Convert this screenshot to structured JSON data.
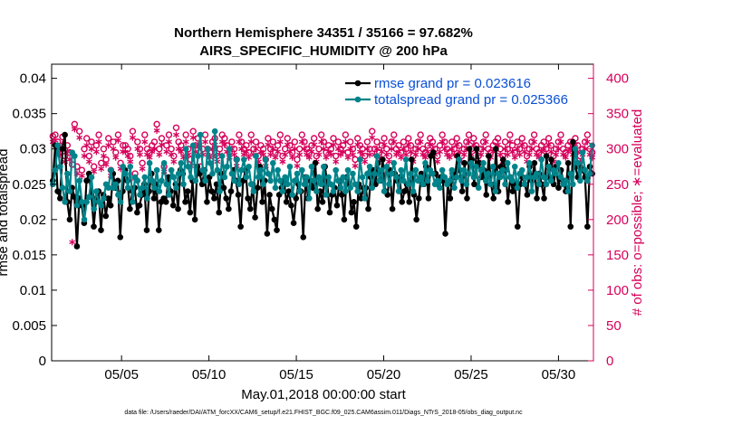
{
  "chart_data": {
    "type": "line",
    "title": "Northern Hemisphere 34351 / 35166 = 97.682%",
    "subtitle": "AIRS_SPECIFIC_HUMIDITY @ 200 hPa",
    "xlabel": "May.01,2018 00:00:00 start",
    "ylabel": "rmse and totalspread",
    "ylabel_right": "# of obs: o=possible; ∗=evaluated",
    "footnote": "data file: /Users/raeder/DAI/ATM_forcXX/CAM6_setup/f.e21.FHIST_BGC.f09_025.CAM6assim.011/Diags_NTrS_2018-05/obs_diag_output.nc",
    "xlim": [
      1,
      32
    ],
    "ylim": [
      0,
      0.042
    ],
    "ylim_right": [
      0,
      420
    ],
    "x_ticks": [
      5,
      10,
      15,
      20,
      25,
      30
    ],
    "x_tick_labels": [
      "05/05",
      "05/10",
      "05/15",
      "05/20",
      "05/25",
      "05/30"
    ],
    "y_ticks": [
      0,
      0.005,
      0.01,
      0.015,
      0.02,
      0.025,
      0.03,
      0.035,
      0.04
    ],
    "y_tick_labels": [
      "0",
      "0.005",
      "0.01",
      "0.015",
      "0.02",
      "0.025",
      "0.03",
      "0.035",
      "0.04"
    ],
    "y_ticks_right": [
      0,
      50,
      100,
      150,
      200,
      250,
      300,
      350,
      400
    ],
    "y_tick_labels_right": [
      "0",
      "50",
      "100",
      "150",
      "200",
      "250",
      "300",
      "350",
      "400"
    ],
    "legend_position": "top-right",
    "series": [
      {
        "name": "rmse grand pr = 0.023616",
        "color": "#000000",
        "marker": "filled-circle",
        "values": [
          0.0255,
          0.0305,
          0.024,
          0.023,
          0.03,
          0.032,
          0.0225,
          0.02,
          0.0245,
          0.0232,
          0.0162,
          0.023,
          0.022,
          0.0195,
          0.0255,
          0.0265,
          0.0235,
          0.019,
          0.023,
          0.024,
          0.0185,
          0.0235,
          0.0205,
          0.023,
          0.022,
          0.0265,
          0.0245,
          0.0255,
          0.0175,
          0.024,
          0.027,
          0.0255,
          0.0215,
          0.024,
          0.0245,
          0.021,
          0.022,
          0.0235,
          0.025,
          0.0185,
          0.024,
          0.0265,
          0.023,
          0.025,
          0.0185,
          0.0225,
          0.023,
          0.0225,
          0.026,
          0.024,
          0.022,
          0.025,
          0.0215,
          0.027,
          0.0265,
          0.0225,
          0.024,
          0.021,
          0.0255,
          0.02,
          0.0275,
          0.0265,
          0.025,
          0.027,
          0.0225,
          0.026,
          0.024,
          0.023,
          0.025,
          0.021,
          0.0265,
          0.0245,
          0.023,
          0.0215,
          0.024,
          0.027,
          0.0255,
          0.0235,
          0.019,
          0.0255,
          0.027,
          0.023,
          0.0215,
          0.025,
          0.0203,
          0.0245,
          0.0275,
          0.0225,
          0.0255,
          0.018,
          0.0235,
          0.0215,
          0.02,
          0.0185,
          0.0235,
          0.0245,
          0.0255,
          0.0225,
          0.024,
          0.022,
          0.0195,
          0.023,
          0.025,
          0.024,
          0.0175,
          0.026,
          0.023,
          0.0255,
          0.0245,
          0.028,
          0.0215,
          0.024,
          0.0225,
          0.0275,
          0.025,
          0.021,
          0.0235,
          0.0245,
          0.022,
          0.0255,
          0.0235,
          0.02,
          0.026,
          0.025,
          0.021,
          0.0225,
          0.019,
          0.025,
          0.023,
          0.0245,
          0.0245,
          0.0215,
          0.026,
          0.027,
          0.025,
          0.028,
          0.0255,
          0.0285,
          0.024,
          0.0235,
          0.027,
          0.0215,
          0.0265,
          0.0255,
          0.026,
          0.0225,
          0.024,
          0.025,
          0.0225,
          0.0285,
          0.0235,
          0.02,
          0.023,
          0.0265,
          0.025,
          0.0275,
          0.023,
          0.029,
          0.0295,
          0.0265,
          0.025,
          0.026,
          0.0255,
          0.018,
          0.025,
          0.023,
          0.0265,
          0.026,
          0.029,
          0.027,
          0.024,
          0.028,
          0.023,
          0.03,
          0.0285,
          0.025,
          0.03,
          0.028,
          0.026,
          0.027,
          0.0235,
          0.029,
          0.025,
          0.023,
          0.03,
          0.024,
          0.0275,
          0.0285,
          0.027,
          0.0225,
          0.026,
          0.024,
          0.025,
          0.019,
          0.025,
          0.026,
          0.025,
          0.0235,
          0.0275,
          0.0255,
          0.028,
          0.023,
          0.0265,
          0.025,
          0.023,
          0.029,
          0.026,
          0.0285,
          0.025,
          0.0275,
          0.0245,
          0.027,
          0.0255,
          0.024,
          0.028,
          0.019,
          0.031,
          0.0275,
          0.026,
          0.0275,
          0.027,
          0.026,
          0.019,
          0.0275,
          0.0265
        ]
      },
      {
        "name": "totalspread grand pr = 0.025366",
        "color": "#00838a",
        "marker": "filled-circle",
        "values": [
          0.025,
          0.027,
          0.0305,
          0.0275,
          0.0245,
          0.0225,
          0.0265,
          0.024,
          0.0295,
          0.029,
          0.022,
          0.0255,
          0.0225,
          0.02,
          0.0225,
          0.0232,
          0.026,
          0.0215,
          0.024,
          0.0225,
          0.022,
          0.023,
          0.025,
          0.0245,
          0.027,
          0.0245,
          0.025,
          0.0235,
          0.0225,
          0.0275,
          0.0265,
          0.0245,
          0.0275,
          0.0225,
          0.026,
          0.0255,
          0.0235,
          0.0245,
          0.026,
          0.023,
          0.028,
          0.0255,
          0.0245,
          0.027,
          0.024,
          0.0255,
          0.028,
          0.025,
          0.0235,
          0.027,
          0.026,
          0.0245,
          0.0265,
          0.028,
          0.025,
          0.03,
          0.0275,
          0.026,
          0.0305,
          0.0255,
          0.029,
          0.032,
          0.027,
          0.0255,
          0.03,
          0.028,
          0.0265,
          0.0325,
          0.027,
          0.024,
          0.029,
          0.026,
          0.0275,
          0.03,
          0.0265,
          0.0255,
          0.0285,
          0.025,
          0.027,
          0.0285,
          0.026,
          0.0275,
          0.025,
          0.024,
          0.029,
          0.026,
          0.027,
          0.025,
          0.0285,
          0.0265,
          0.0255,
          0.028,
          0.0245,
          0.027,
          0.0255,
          0.024,
          0.026,
          0.025,
          0.0275,
          0.0235,
          0.0255,
          0.0265,
          0.024,
          0.027,
          0.025,
          0.026,
          0.023,
          0.0275,
          0.0255,
          0.024,
          0.026,
          0.025,
          0.0275,
          0.0235,
          0.026,
          0.025,
          0.024,
          0.027,
          0.0255,
          0.0245,
          0.026,
          0.024,
          0.027,
          0.0245,
          0.0265,
          0.025,
          0.024,
          0.0285,
          0.026,
          0.023,
          0.0265,
          0.0275,
          0.0245,
          0.0265,
          0.029,
          0.0255,
          0.027,
          0.024,
          0.0275,
          0.025,
          0.0265,
          0.028,
          0.026,
          0.024,
          0.027,
          0.0255,
          0.0285,
          0.025,
          0.0265,
          0.024,
          0.027,
          0.0255,
          0.026,
          0.025,
          0.028,
          0.0255,
          0.027,
          0.0265,
          0.025,
          0.0255,
          0.0245,
          0.027,
          0.026,
          0.025,
          0.0255,
          0.027,
          0.0245,
          0.026,
          0.0285,
          0.0255,
          0.027,
          0.025,
          0.0265,
          0.028,
          0.026,
          0.0275,
          0.0245,
          0.027,
          0.028,
          0.0255,
          0.0265,
          0.025,
          0.0275,
          0.024,
          0.0265,
          0.026,
          0.027,
          0.025,
          0.028,
          0.026,
          0.0255,
          0.0275,
          0.0245,
          0.0265,
          0.027,
          0.025,
          0.026,
          0.028,
          0.024,
          0.026,
          0.0265,
          0.025,
          0.0285,
          0.026,
          0.025,
          0.0275,
          0.0255,
          0.027,
          0.0265,
          0.028,
          0.026,
          0.025,
          0.0255,
          0.024,
          0.0265,
          0.025,
          0.03,
          0.028,
          0.0255,
          0.0295,
          0.027,
          0.0255,
          0.0265,
          0.0305
        ]
      },
      {
        "name": "possible obs",
        "axis": "right",
        "color": "#d6005a",
        "marker": "open-circle",
        "values": [
          318,
          320,
          310,
          300,
          317,
          290,
          305,
          295,
          278,
          335,
          275,
          325,
          270,
          300,
          315,
          290,
          310,
          275,
          305,
          320,
          280,
          300,
          285,
          315,
          270,
          310,
          295,
          320,
          280,
          305,
          305,
          300,
          290,
          325,
          265,
          310,
          300,
          280,
          320,
          300,
          295,
          305,
          310,
          335,
          300,
          315,
          275,
          305,
          320,
          300,
          290,
          330,
          310,
          305,
          295,
          320,
          300,
          285,
          325,
          305,
          315,
          275,
          300,
          320,
          300,
          295,
          310,
          315,
          290,
          300,
          320,
          315,
          305,
          295,
          310,
          300,
          285,
          320,
          310,
          300,
          305,
          295,
          320,
          300,
          310,
          290,
          305,
          300,
          285,
          315,
          300,
          310,
          295,
          305,
          320,
          290,
          300,
          315,
          305,
          295,
          310,
          285,
          300,
          320,
          310,
          300,
          295,
          305,
          315,
          290,
          300,
          320,
          310,
          295,
          305,
          300,
          315,
          290,
          310,
          300,
          305,
          320,
          295,
          310,
          300,
          285,
          315,
          305,
          300,
          290,
          310,
          300,
          325,
          300,
          310,
          295,
          305,
          315,
          300,
          290,
          310,
          320,
          300,
          305,
          295,
          310,
          300,
          315,
          305,
          290,
          300,
          310,
          320,
          300,
          295,
          305,
          315,
          310,
          300,
          290,
          305,
          320,
          310,
          300,
          295,
          310,
          300,
          315,
          305,
          290,
          300,
          310,
          320,
          300,
          315,
          305,
          290,
          300,
          310,
          320,
          300,
          295,
          305,
          310,
          315,
          300,
          290,
          310,
          300,
          320,
          305,
          295,
          310,
          300,
          315,
          305,
          290,
          300,
          310,
          320,
          300,
          295,
          305,
          310,
          300,
          315,
          305,
          290,
          300,
          310,
          320,
          300,
          295,
          305,
          310,
          300,
          315,
          305,
          290,
          300,
          310,
          320,
          300,
          295
        ]
      },
      {
        "name": "evaluated obs",
        "axis": "right",
        "color": "#d6005a",
        "marker": "asterisk",
        "values": [
          310,
          312,
          300,
          292,
          307,
          282,
          296,
          285,
          168,
          328,
          265,
          316,
          262,
          290,
          305,
          282,
          300,
          268,
          296,
          310,
          272,
          290,
          278,
          305,
          262,
          300,
          288,
          312,
          272,
          296,
          296,
          290,
          282,
          316,
          258,
          300,
          292,
          272,
          310,
          292,
          288,
          296,
          300,
          326,
          292,
          306,
          268,
          296,
          310,
          292,
          282,
          320,
          300,
          296,
          288,
          310,
          292,
          276,
          316,
          296,
          305,
          268,
          292,
          310,
          292,
          288,
          300,
          306,
          282,
          292,
          310,
          306,
          296,
          288,
          300,
          292,
          276,
          310,
          300,
          292,
          296,
          288,
          310,
          292,
          300,
          282,
          296,
          292,
          276,
          306,
          292,
          300,
          288,
          296,
          310,
          282,
          292,
          306,
          296,
          288,
          300,
          276,
          292,
          310,
          300,
          292,
          288,
          296,
          306,
          282,
          292,
          310,
          300,
          288,
          296,
          292,
          306,
          282,
          300,
          292,
          296,
          310,
          288,
          300,
          292,
          276,
          306,
          296,
          292,
          282,
          300,
          292,
          316,
          292,
          300,
          288,
          296,
          306,
          292,
          282,
          300,
          310,
          292,
          296,
          288,
          300,
          292,
          306,
          296,
          282,
          292,
          300,
          310,
          292,
          288,
          296,
          306,
          300,
          292,
          282,
          296,
          310,
          300,
          292,
          288,
          300,
          292,
          306,
          296,
          282,
          292,
          300,
          310,
          292,
          306,
          296,
          282,
          292,
          300,
          310,
          292,
          288,
          296,
          300,
          306,
          292,
          282,
          300,
          292,
          310,
          296,
          288,
          300,
          292,
          306,
          296,
          282,
          292,
          300,
          310,
          292,
          288,
          296,
          300,
          292,
          306,
          296,
          282,
          292,
          300,
          310,
          292,
          288,
          296,
          300,
          292,
          306,
          296,
          282,
          292,
          300,
          310,
          292,
          288
        ]
      }
    ]
  }
}
